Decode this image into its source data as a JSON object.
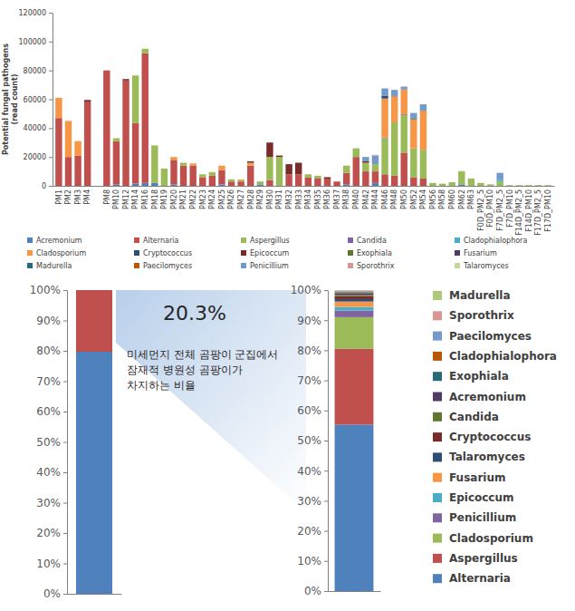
{
  "chart_data": [
    {
      "type": "bar",
      "stacked": true,
      "grid": false,
      "legend": "bottom",
      "ylabel": [
        "Potential fungal pathogens",
        "(read count)"
      ],
      "categories": [
        "PM1",
        "PM2",
        "PM3",
        "PM4",
        null,
        "PM8",
        "PM10",
        "PM12",
        "PM14",
        "PM16",
        "PM18",
        "PM19",
        "PM20",
        "PM21",
        "PM22",
        "PM23",
        "PM24",
        "PM25",
        "PM26",
        "PM27",
        "PM28",
        "PM29",
        "PM30",
        "PM31",
        "PM32",
        "PM33",
        "PM34",
        "PM35",
        "PM36",
        "PM37",
        "PM38",
        "PM40",
        "PM42",
        "PM44",
        "PM46",
        "PM48",
        "PM50",
        "PM52",
        "PM54",
        "PM56",
        "PM58",
        "PM60",
        "PM62",
        "PM63",
        "F0D_PM2_5",
        "F0D_PM10",
        "F7D_PM2_5",
        "F7D_PM10",
        "F14D_PM2_5",
        "F14D_PM10",
        "F17D_PM2_5",
        "F17D_PM10"
      ],
      "ylim": [
        0,
        120000
      ],
      "yticks": [
        0,
        20000,
        40000,
        60000,
        80000,
        100000,
        120000
      ],
      "series": [
        {
          "name": "Acremonium",
          "color": "#4f81bd",
          "values": [
            0,
            0,
            0,
            0,
            0,
            0,
            1000,
            0,
            1500,
            2000,
            2000,
            0,
            1000,
            0,
            0,
            0,
            0,
            1000,
            0,
            0,
            0,
            1000,
            0,
            0,
            0,
            0,
            0,
            0,
            0,
            0,
            1000,
            0,
            0,
            2000,
            0,
            0,
            0,
            0,
            0,
            0,
            0,
            0,
            1000,
            0,
            0,
            0,
            0,
            0,
            0,
            0,
            0,
            0
          ]
        },
        {
          "name": "Alternaria",
          "color": "#c0504d",
          "values": [
            47000,
            20000,
            21000,
            58000,
            0,
            80000,
            30000,
            73000,
            42000,
            90000,
            0,
            0,
            17000,
            14000,
            14000,
            6000,
            7000,
            10000,
            3000,
            3000,
            14000,
            0,
            4000,
            0,
            8000,
            8000,
            6000,
            5000,
            5000,
            3000,
            8000,
            20000,
            10000,
            8000,
            8000,
            7000,
            23000,
            6000,
            5000,
            0,
            0,
            0,
            0,
            0,
            0,
            0,
            0,
            0,
            0,
            0,
            0,
            0
          ]
        },
        {
          "name": "Aspergillus",
          "color": "#9bbb59",
          "values": [
            0,
            0,
            0,
            0,
            0,
            0,
            2000,
            0,
            33000,
            3000,
            26000,
            12000,
            0,
            2000,
            0,
            2000,
            2500,
            0,
            1500,
            1000,
            0,
            2000,
            16000,
            20000,
            0,
            0,
            2000,
            2000,
            0,
            0,
            5000,
            6000,
            6000,
            5000,
            25000,
            37000,
            26000,
            20000,
            20000,
            2000,
            1500,
            2500,
            9000,
            5000,
            2000,
            1000,
            3000,
            500,
            500,
            500,
            500,
            500
          ]
        },
        {
          "name": "Candida",
          "color": "#8064a2",
          "values": [
            0,
            0,
            0,
            0,
            0,
            0,
            0,
            0,
            0,
            0,
            0,
            0,
            0,
            0,
            0,
            0,
            0,
            0,
            0,
            0,
            0,
            0,
            0,
            0,
            0,
            0,
            0,
            0,
            0,
            0,
            0,
            0,
            0,
            0,
            500,
            0,
            500,
            0,
            0,
            0,
            0,
            0,
            0,
            0,
            0,
            0,
            0,
            0,
            0,
            0,
            0,
            0
          ]
        },
        {
          "name": "Cladophialophora",
          "color": "#4bacc6",
          "values": [
            0,
            0,
            0,
            0,
            0,
            0,
            0,
            0,
            0,
            0,
            0,
            0,
            0,
            0,
            0,
            0,
            0,
            0,
            0,
            0,
            0,
            0,
            0,
            0,
            0,
            0,
            0,
            0,
            0,
            0,
            0,
            0,
            0,
            0,
            0,
            0,
            0,
            0,
            0,
            0,
            0,
            0,
            0,
            0,
            0,
            0,
            1000,
            0,
            0,
            0,
            0,
            0
          ]
        },
        {
          "name": "Cladosporium",
          "color": "#f79646",
          "values": [
            14000,
            25000,
            10000,
            0,
            0,
            0,
            0,
            0,
            0,
            0,
            0,
            0,
            2000,
            0,
            1500,
            0,
            0,
            3000,
            0,
            500,
            2000,
            0,
            0,
            0,
            0,
            0,
            0,
            0,
            0,
            0,
            0,
            0,
            0,
            0,
            27000,
            18000,
            17000,
            20000,
            27000,
            0,
            0,
            0,
            0,
            0,
            0,
            0,
            0,
            0,
            0,
            0,
            0,
            0
          ]
        },
        {
          "name": "Cryptococcus",
          "color": "#2c4d75",
          "values": [
            0,
            0,
            0,
            0,
            0,
            0,
            0,
            0,
            0,
            0,
            0,
            0,
            0,
            0,
            0,
            0,
            0,
            0,
            0,
            0,
            0,
            0,
            0,
            0,
            0,
            0,
            0,
            0,
            0,
            0,
            0,
            0,
            0,
            0,
            2000,
            0,
            0,
            0,
            0,
            0,
            0,
            0,
            0,
            0,
            0,
            0,
            0,
            0,
            0,
            0,
            0,
            0
          ]
        },
        {
          "name": "Epicoccum",
          "color": "#772c2a",
          "values": [
            0,
            0,
            0,
            1500,
            0,
            0,
            0,
            1000,
            0,
            0,
            0,
            0,
            0,
            0,
            0,
            0,
            0,
            0,
            0,
            0,
            1000,
            0,
            10000,
            1000,
            7000,
            8000,
            0,
            0,
            1000,
            0,
            0,
            0,
            1000,
            0,
            0,
            0,
            0,
            0,
            0,
            0,
            0,
            0,
            0,
            0,
            0,
            0,
            0,
            0,
            0,
            0,
            0,
            0
          ]
        },
        {
          "name": "Exophiala",
          "color": "#5f7530",
          "values": [
            0,
            0,
            0,
            0,
            0,
            0,
            0,
            0,
            0,
            0,
            0,
            0,
            0,
            0,
            0,
            0,
            0,
            0,
            0,
            0,
            0,
            0,
            0,
            0,
            0,
            0,
            0,
            0,
            0,
            0,
            0,
            0,
            0,
            0,
            0,
            0,
            0,
            500,
            0,
            0,
            0,
            0,
            0,
            0,
            0,
            0,
            0,
            0,
            0,
            0,
            0,
            0
          ]
        },
        {
          "name": "Fusarium",
          "color": "#4d3b62",
          "values": [
            0,
            0,
            0,
            0,
            0,
            0,
            0,
            0,
            0,
            0,
            0,
            0,
            0,
            0,
            0,
            0,
            0,
            0,
            0,
            0,
            0,
            0,
            0,
            0,
            0,
            0,
            0,
            0,
            0,
            0,
            0,
            0,
            0,
            0,
            0,
            500,
            0,
            0,
            0,
            0,
            0,
            0,
            0,
            0,
            0,
            0,
            0,
            0,
            0,
            0,
            0,
            0
          ]
        },
        {
          "name": "Madurella",
          "color": "#276a7c",
          "values": [
            0,
            0,
            0,
            0,
            0,
            0,
            0,
            0,
            0,
            0,
            0,
            0,
            0,
            0,
            0,
            0,
            0,
            0,
            0,
            0,
            0,
            0,
            0,
            0,
            0,
            0,
            0,
            0,
            0,
            0,
            0,
            0,
            0,
            0,
            0,
            0,
            0,
            0,
            500,
            0,
            0,
            0,
            0,
            0,
            0,
            0,
            0,
            0,
            0,
            0,
            0,
            0
          ]
        },
        {
          "name": "Paecilomyces",
          "color": "#b65708",
          "values": [
            0,
            0,
            0,
            0,
            0,
            0,
            0,
            0,
            0,
            0,
            0,
            0,
            0,
            0,
            0,
            0,
            0,
            0,
            0,
            0,
            0,
            0,
            0,
            0,
            0,
            0,
            0,
            0,
            0,
            0,
            0,
            0,
            0,
            0,
            0,
            0,
            300,
            0,
            0,
            0,
            0,
            0,
            0,
            0,
            0,
            0,
            0,
            0,
            0,
            0,
            0,
            0
          ]
        },
        {
          "name": "Penicillium",
          "color": "#729aca",
          "values": [
            0,
            0,
            0,
            0,
            0,
            0,
            0,
            0,
            0,
            0,
            0,
            0,
            0,
            0,
            0,
            0,
            0,
            0,
            0,
            0,
            0,
            0,
            0,
            0,
            0,
            0,
            0,
            0,
            0,
            0,
            0,
            0,
            3000,
            6000,
            5000,
            4000,
            2000,
            4000,
            4000,
            0,
            0,
            0,
            0,
            0,
            0,
            0,
            5000,
            0,
            0,
            0,
            0,
            0
          ]
        },
        {
          "name": "Sporothrix",
          "color": "#d99694",
          "values": [
            0,
            0,
            0,
            0,
            0,
            0,
            0,
            0,
            0,
            0,
            0,
            0,
            0,
            0,
            0,
            0,
            0,
            0,
            0,
            0,
            0,
            0,
            0,
            0,
            0,
            0,
            0,
            0,
            0,
            0,
            0,
            0,
            0,
            500,
            0,
            0,
            0,
            0,
            0,
            0,
            0,
            0,
            0,
            0,
            0,
            0,
            0,
            0,
            0,
            0,
            0,
            0
          ]
        },
        {
          "name": "Talaromyces",
          "color": "#c3d69b",
          "values": [
            0,
            0,
            0,
            0,
            0,
            0,
            0,
            0,
            0,
            0,
            0,
            0,
            0,
            0,
            0,
            0,
            0,
            0,
            0,
            0,
            0,
            0,
            0,
            0,
            0,
            0,
            0,
            0,
            0,
            0,
            0,
            0,
            0,
            0,
            0,
            0,
            0,
            0,
            0,
            0,
            0,
            0,
            300,
            0,
            0,
            0,
            0,
            0,
            0,
            0,
            0,
            0
          ]
        }
      ]
    },
    {
      "type": "bar",
      "stacked": true,
      "grid": false,
      "categories": [
        null
      ],
      "ylim": [
        0,
        100
      ],
      "yticks": [
        {
          "value": 0,
          "label": "0%"
        },
        {
          "value": 10,
          "label": "10%"
        },
        {
          "value": 20,
          "label": "20%"
        },
        {
          "value": 30,
          "label": "30%"
        },
        {
          "value": 40,
          "label": "40%"
        },
        {
          "value": 50,
          "label": "50%"
        },
        {
          "value": 60,
          "label": "60%"
        },
        {
          "value": 70,
          "label": "70%"
        },
        {
          "value": 80,
          "label": "80%"
        },
        {
          "value": 90,
          "label": "90%"
        },
        {
          "value": 100,
          "label": "100%"
        }
      ],
      "series": [
        {
          "color": "#4f81bd",
          "values": [
            79.7
          ]
        },
        {
          "color": "#c0504d",
          "values": [
            20.3
          ]
        }
      ],
      "annotations": [
        "20.3%",
        "미세먼지 전체 곰팡이 군집에서",
        "잠재적 병원성 곰팡이가",
        "차지하는 비율"
      ]
    },
    {
      "type": "bar",
      "stacked": true,
      "grid": false,
      "legend": "right",
      "categories": [
        null
      ],
      "ylim": [
        0,
        100
      ],
      "yticks": [
        {
          "value": 0,
          "label": "0%"
        },
        {
          "value": 10,
          "label": "10%"
        },
        {
          "value": 20,
          "label": "20%"
        },
        {
          "value": 30,
          "label": "30%"
        },
        {
          "value": 40,
          "label": "40%"
        },
        {
          "value": 50,
          "label": "50%"
        },
        {
          "value": 60,
          "label": "60%"
        },
        {
          "value": 70,
          "label": "70%"
        },
        {
          "value": 80,
          "label": "80%"
        },
        {
          "value": 90,
          "label": "90%"
        },
        {
          "value": 100,
          "label": "100%"
        }
      ],
      "series": [
        {
          "name": "Alternaria",
          "color": "#4f81bd",
          "values": [
            55.3
          ]
        },
        {
          "name": "Aspergillus",
          "color": "#c0504d",
          "values": [
            25.2
          ]
        },
        {
          "name": "Cladosporium",
          "color": "#9bbb59",
          "values": [
            10.5
          ]
        },
        {
          "name": "Penicillium",
          "color": "#8064a2",
          "values": [
            2.2
          ]
        },
        {
          "name": "Epicoccum",
          "color": "#4bacc6",
          "values": [
            1.2
          ]
        },
        {
          "name": "Fusarium",
          "color": "#f79646",
          "values": [
            1.8
          ]
        },
        {
          "name": "Talaromyces",
          "color": "#2c4d75",
          "values": [
            0.8
          ]
        },
        {
          "name": "Cryptococcus",
          "color": "#772c2a",
          "values": [
            1.0
          ]
        },
        {
          "name": "Candida",
          "color": "#5f7530",
          "values": [
            0.4
          ]
        },
        {
          "name": "Acremonium",
          "color": "#4d3b62",
          "values": [
            0.5
          ]
        },
        {
          "name": "Exophiala",
          "color": "#276a7c",
          "values": [
            0.3
          ]
        },
        {
          "name": "Cladophialophora",
          "color": "#b65708",
          "values": [
            0.3
          ]
        },
        {
          "name": "Paecilomyces",
          "color": "#729aca",
          "values": [
            0.2
          ]
        },
        {
          "name": "Sporothrix",
          "color": "#d99694",
          "values": [
            0.2
          ]
        },
        {
          "name": "Madurella",
          "color": "#afc97a",
          "values": [
            0.1
          ]
        }
      ]
    }
  ]
}
